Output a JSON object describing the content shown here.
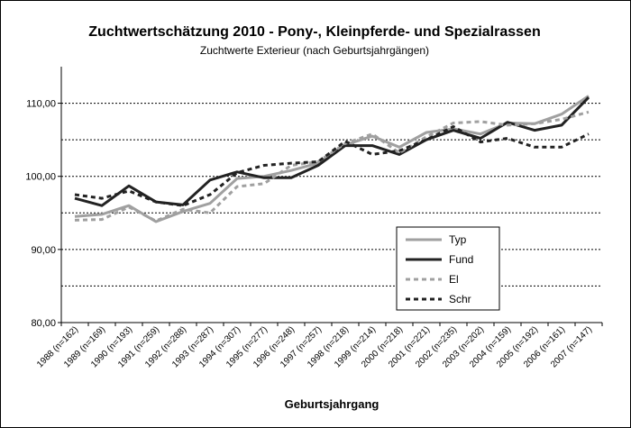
{
  "chart_data": {
    "type": "line",
    "title": "Zuchtwertschätzung 2010 - Pony-, Kleinpferde- und Spezialrassen",
    "subtitle": "Zuchtwerte Exterieur (nach Geburtsjahrgängen)",
    "xlabel": "Geburtsjahrgang",
    "ylabel": "",
    "ylim": [
      80,
      115
    ],
    "yticks": [
      "80,00",
      "90,00",
      "100,00",
      "110,00"
    ],
    "ytick_values": [
      80,
      90,
      100,
      110
    ],
    "gridlines_dotted": [
      85,
      95,
      105
    ],
    "gridlines_solid": [],
    "categories": [
      "1988 (n=162)",
      "1989 (n=169)",
      "1990 (n=193)",
      "1991 (n=259)",
      "1992 (n=288)",
      "1993 (n=287)",
      "1994 (n=307)",
      "1995 (n=277)",
      "1996 (n=248)",
      "1997 (n=257)",
      "1998 (n=218)",
      "1999 (n=214)",
      "2000 (n=218)",
      "2001 (n=221)",
      "2002 (n=235)",
      "2003 (n=202)",
      "2004 (n=159)",
      "2005 (n=192)",
      "2006 (n=161)",
      "2007 (n=147)"
    ],
    "legend_position": "lower-right",
    "series": [
      {
        "name": "Typ",
        "color": "#a0a0a0",
        "dash": "solid",
        "values": [
          94.5,
          94.8,
          96.0,
          93.8,
          95.2,
          96.3,
          99.7,
          100.0,
          100.8,
          101.8,
          104.3,
          105.5,
          104.0,
          106.0,
          106.5,
          105.8,
          107.3,
          107.2,
          108.5,
          111.0
        ]
      },
      {
        "name": "Fund",
        "color": "#222222",
        "dash": "solid",
        "values": [
          97.0,
          96.0,
          98.7,
          96.5,
          96.1,
          99.5,
          100.6,
          99.8,
          99.8,
          101.5,
          104.2,
          104.2,
          103.0,
          105.0,
          106.3,
          105.2,
          107.4,
          106.3,
          107.0,
          110.8
        ]
      },
      {
        "name": "El",
        "color": "#a0a0a0",
        "dash": "dotted",
        "values": [
          94.0,
          94.1,
          95.8,
          93.9,
          95.5,
          95.0,
          98.6,
          99.0,
          101.5,
          102.0,
          104.5,
          105.8,
          103.2,
          105.4,
          107.3,
          107.5,
          107.0,
          107.2,
          107.8,
          108.8
        ]
      },
      {
        "name": "Schr",
        "color": "#222222",
        "dash": "dotted",
        "values": [
          97.5,
          97.0,
          98.0,
          96.5,
          96.0,
          97.5,
          100.5,
          101.5,
          101.8,
          102.0,
          104.8,
          103.0,
          103.5,
          105.0,
          106.8,
          104.7,
          105.2,
          104.0,
          104.0,
          105.8
        ]
      }
    ]
  }
}
